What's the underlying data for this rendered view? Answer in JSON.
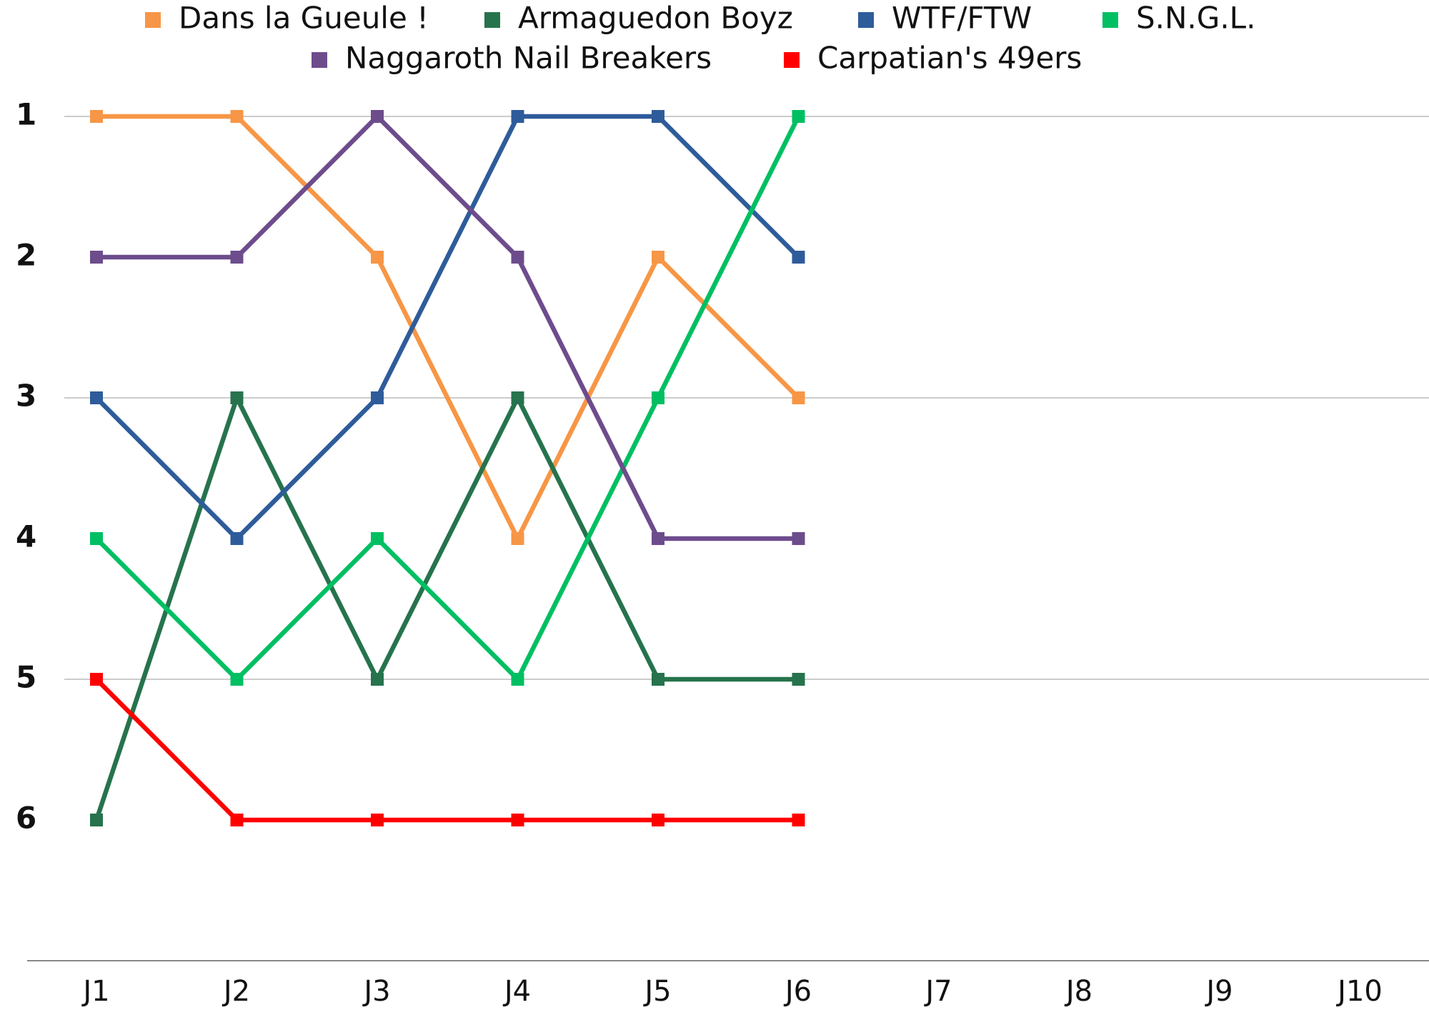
{
  "chart_data": {
    "type": "line",
    "categories": [
      "J1",
      "J2",
      "J3",
      "J4",
      "J5",
      "J6",
      "J7",
      "J8",
      "J9",
      "J10"
    ],
    "series": [
      {
        "name": "Dans la Gueule !",
        "color": "#f79646",
        "values": [
          1,
          1,
          2,
          4,
          2,
          3,
          null,
          null,
          null,
          null
        ]
      },
      {
        "name": "Armaguedon Boyz",
        "color": "#26734d",
        "values": [
          6,
          3,
          5,
          3,
          5,
          5,
          null,
          null,
          null,
          null
        ]
      },
      {
        "name": "WTF/FTW",
        "color": "#2e5c9a",
        "values": [
          3,
          4,
          3,
          1,
          1,
          2,
          null,
          null,
          null,
          null
        ]
      },
      {
        "name": "S.N.G.L.",
        "color": "#00bf63",
        "values": [
          4,
          5,
          4,
          5,
          3,
          1,
          null,
          null,
          null,
          null
        ]
      },
      {
        "name": "Naggaroth Nail Breakers",
        "color": "#6d4c8c",
        "values": [
          2,
          2,
          1,
          2,
          4,
          4,
          null,
          null,
          null,
          null
        ]
      },
      {
        "name": "Carpatian's 49ers",
        "color": "#ff0000",
        "values": [
          5,
          6,
          6,
          6,
          6,
          6,
          null,
          null,
          null,
          null
        ]
      }
    ],
    "ylim": [
      7,
      0.5
    ],
    "yticks": [
      1,
      2,
      3,
      4,
      5,
      6
    ],
    "ygrid": [
      1,
      3,
      5,
      7
    ],
    "legend": "top"
  }
}
